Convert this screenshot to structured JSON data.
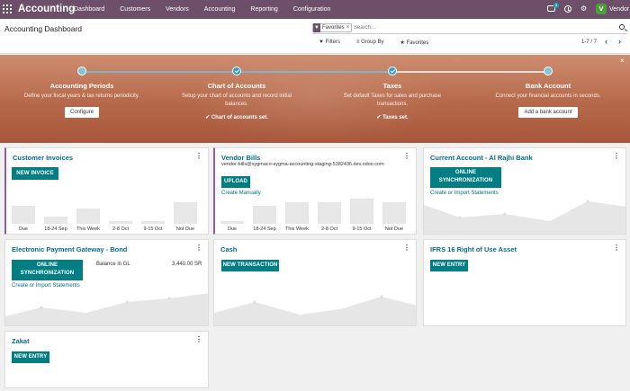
{
  "topbar": {
    "brand": "Accounting",
    "menu": [
      "Dashboard",
      "Customers",
      "Vendors",
      "Accounting",
      "Reporting",
      "Configuration"
    ],
    "chat_badge": "1",
    "user": "Vendor",
    "avatar_letter": "V"
  },
  "control": {
    "title": "Accounting Dashboard",
    "facet_label": "Favorites",
    "facet_remove": "×",
    "search_placeholder": "Search...",
    "filters_label": "Filters",
    "groupby_label": "Group By",
    "favorites_label": "Favorites",
    "pager": "1-7 / 7"
  },
  "onboarding": {
    "steps": [
      {
        "title": "Accounting Periods",
        "desc": "Define your fiscal years & tax returns periodicity.",
        "button": "Configure",
        "done": false
      },
      {
        "title": "Chart of Accounts",
        "desc": "Setup your chart of accounts and record initial balances.",
        "done_text": "Chart of accounts set.",
        "done": true
      },
      {
        "title": "Taxes",
        "desc": "Set default Taxes for sales and purchase transactions.",
        "done_text": "Taxes set.",
        "done": true
      },
      {
        "title": "Bank Account",
        "desc": "Connect your financial accounts in seconds.",
        "button": "Add a bank account",
        "done": false
      }
    ]
  },
  "cards": {
    "customer_invoices": {
      "title": "Customer Invoices",
      "button": "NEW INVOICE",
      "chart_labels": [
        "Due",
        "18-24 Sep",
        "This Week",
        "2-8 Oct",
        "9-15 Oct",
        "Not Due"
      ]
    },
    "vendor_bills": {
      "title": "Vendor Bills",
      "email": "vendor-bills@sygmaco-sygma-accounting-staging-5382436.dev.odoo.com",
      "button": "UPLOAD",
      "link": "Create Manually",
      "chart_labels": [
        "Due",
        "18-24 Sep",
        "This Week",
        "2-8 Oct",
        "9-15 Oct",
        "Not Due"
      ]
    },
    "current_account": {
      "title": "Current Account - Al Rajhi Bank",
      "button_line1": "ONLINE",
      "button_line2": "SYNCHRONIZATION",
      "link": "Create or Import Statements"
    },
    "payment_gateway": {
      "title": "Electronic Payment Gateway - Bond",
      "button_line1": "ONLINE",
      "button_line2": "SYNCHRONIZATION",
      "link": "Create or Import Statements",
      "balance_label": "Balance in GL",
      "balance_value": "3,440.00 SR"
    },
    "cash": {
      "title": "Cash",
      "button": "NEW TRANSACTION"
    },
    "ifrs": {
      "title": "IFRS 16 Right of Use Asset",
      "button": "NEW ENTRY"
    },
    "zakat": {
      "title": "Zakat",
      "button": "NEW ENTRY"
    }
  },
  "chart_data": [
    {
      "type": "bar",
      "title": "Customer Invoices",
      "categories": [
        "Due",
        "18-24 Sep",
        "This Week",
        "2-8 Oct",
        "9-15 Oct",
        "Not Due"
      ],
      "values": [
        14,
        6,
        12,
        2,
        2,
        17
      ]
    },
    {
      "type": "bar",
      "title": "Vendor Bills",
      "categories": [
        "Due",
        "18-24 Sep",
        "This Week",
        "2-8 Oct",
        "9-15 Oct",
        "Not Due"
      ],
      "values": [
        2,
        14,
        17,
        17,
        20,
        17
      ]
    }
  ]
}
